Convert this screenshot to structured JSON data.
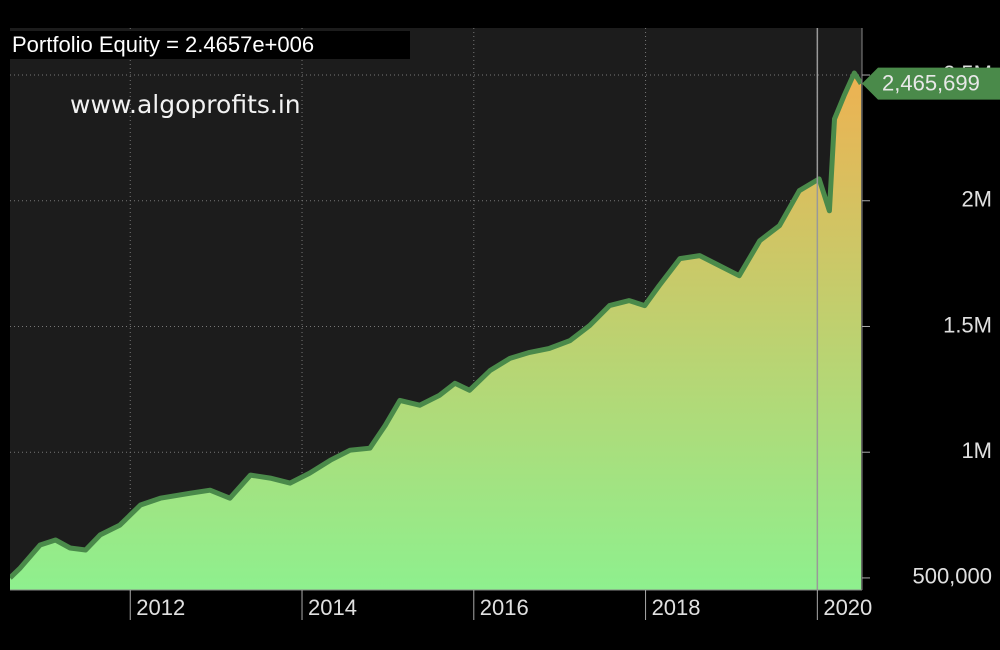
{
  "chart_data": {
    "type": "area",
    "title": "Portfolio Equity = 2.4657e+006",
    "watermark": "www.algoprofits.in",
    "series": [
      {
        "name": "Portfolio Equity",
        "color": "#4a8a4a",
        "fill_top": "#f0b050",
        "fill_bottom": "#8ef08e",
        "x": [
          2010.6,
          2010.72,
          2010.95,
          2011.13,
          2011.3,
          2011.48,
          2011.65,
          2011.88,
          2012.12,
          2012.35,
          2012.7,
          2012.93,
          2013.16,
          2013.4,
          2013.63,
          2013.86,
          2014.09,
          2014.33,
          2014.56,
          2014.79,
          2014.97,
          2015.14,
          2015.37,
          2015.6,
          2015.78,
          2015.95,
          2016.19,
          2016.42,
          2016.65,
          2016.88,
          2017.12,
          2017.35,
          2017.58,
          2017.81,
          2017.99,
          2018.16,
          2018.4,
          2018.63,
          2018.86,
          2019.09,
          2019.33,
          2019.56,
          2019.79,
          2020.02,
          2020.14,
          2020.2,
          2020.31,
          2020.43,
          2020.51
        ],
        "values": [
          500000,
          540000,
          631000,
          651000,
          619000,
          611000,
          671000,
          710000,
          790000,
          817000,
          837000,
          849000,
          817000,
          909000,
          897000,
          877000,
          917000,
          968000,
          1008000,
          1016000,
          1107000,
          1206000,
          1187000,
          1226000,
          1274000,
          1246000,
          1325000,
          1373000,
          1397000,
          1413000,
          1444000,
          1504000,
          1583000,
          1603000,
          1583000,
          1663000,
          1770000,
          1782000,
          1742000,
          1702000,
          1841000,
          1901000,
          2040000,
          2087000,
          1960000,
          2325000,
          2417000,
          2508000,
          2465699
        ]
      }
    ],
    "last_value_label": "2,465,699",
    "xlim": [
      2010.6,
      2020.52
    ],
    "xticks": [
      2012,
      2014,
      2016,
      2018,
      2020
    ],
    "ylim": [
      452000,
      2687000
    ],
    "yticks": [
      {
        "value": 500000,
        "label": "500,000"
      },
      {
        "value": 1000000,
        "label": "1M"
      },
      {
        "value": 1500000,
        "label": "1.5M"
      },
      {
        "value": 2000000,
        "label": "2M"
      },
      {
        "value": 2500000,
        "label": "2.5M"
      }
    ],
    "cursor_x": 2020,
    "grid": true
  }
}
